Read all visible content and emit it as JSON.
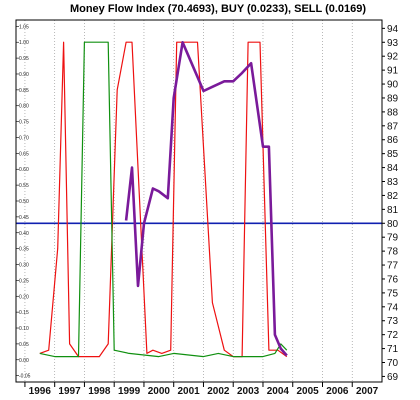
{
  "chart_data": {
    "type": "line",
    "title": "Money Flow Index (70.4693), BUY (0.0233), SELL (0.0169)",
    "x_tick_labels": [
      "1996",
      "1997",
      "1998",
      "1999",
      "2000",
      "2001",
      "2002",
      "2003",
      "2004",
      "2005",
      "2006",
      "2007"
    ],
    "x_range": [
      1995.7,
      2008.0
    ],
    "left_axis": {
      "ticks": [
        "1.05",
        "1.00",
        "0.95",
        "0.90",
        "0.85",
        "0.80",
        "0.75",
        "0.70",
        "0.65",
        "0.60",
        "0.55",
        "0.50",
        "0.45",
        "0.40",
        "0.35",
        "0.30",
        "0.25",
        "0.20",
        "0.15",
        "0.10",
        "0.05",
        "0.00",
        "-0.05"
      ],
      "ylim": [
        -0.07,
        1.07
      ]
    },
    "right_axis": {
      "ticks": [
        94,
        93,
        92,
        91,
        90,
        89,
        88,
        87,
        86,
        85,
        84,
        83,
        82,
        81,
        80,
        79,
        78,
        77,
        76,
        75,
        74,
        73,
        72,
        71,
        70,
        69
      ],
      "ylim": [
        68.6,
        94.6
      ]
    },
    "reference_line": {
      "axis": "right",
      "value": 80.0,
      "color": "#1020b0"
    },
    "series": [
      {
        "axis": "left",
        "color": "#ee1111",
        "x": [
          1996.5,
          1996.8,
          1997.1,
          1997.3,
          1997.5,
          1997.8,
          1998.5,
          1998.8,
          1999.1,
          1999.4,
          1999.6,
          2000.1,
          2000.3,
          2000.6,
          2000.9,
          2001.1,
          2001.4,
          2001.8,
          2002.3,
          2002.7,
          2003.0,
          2003.3,
          2003.5,
          2003.9,
          2004.2,
          2004.5,
          2004.8
        ],
        "y": [
          0.02,
          0.03,
          0.35,
          1.0,
          0.05,
          0.01,
          0.01,
          0.05,
          0.85,
          1.0,
          1.0,
          0.02,
          0.03,
          0.02,
          0.03,
          1.0,
          1.0,
          1.0,
          0.18,
          0.03,
          0.01,
          0.01,
          1.0,
          1.0,
          0.03,
          0.03,
          0.01
        ]
      },
      {
        "axis": "left",
        "color": "#109010",
        "x": [
          1996.5,
          1997.0,
          1997.8,
          1998.0,
          1998.3,
          1998.8,
          1999.0,
          1999.5,
          2000.5,
          2001.0,
          2002.0,
          2002.5,
          2003.0,
          2004.0,
          2004.4,
          2004.6,
          2004.8
        ],
        "y": [
          0.02,
          0.01,
          0.01,
          1.0,
          1.0,
          1.0,
          0.03,
          0.02,
          0.01,
          0.02,
          0.01,
          0.02,
          0.01,
          0.01,
          0.02,
          0.05,
          0.03
        ]
      },
      {
        "axis": "right",
        "color": "#7a1a9a",
        "x": [
          1999.4,
          1999.6,
          1999.8,
          2000.0,
          2000.3,
          2000.5,
          2000.8,
          2001.0,
          2001.3,
          2001.6,
          2002.0,
          2002.3,
          2002.7,
          2003.0,
          2003.3,
          2003.6,
          2004.0,
          2004.2,
          2004.4,
          2004.6,
          2004.8
        ],
        "y": [
          80.2,
          84.0,
          75.5,
          80.0,
          82.5,
          82.3,
          81.8,
          89.0,
          93.0,
          91.5,
          89.5,
          89.8,
          90.2,
          90.2,
          90.8,
          91.5,
          85.5,
          85.5,
          72.0,
          71.0,
          70.5
        ]
      }
    ],
    "grid": {
      "vertical": true,
      "style": "dotted"
    }
  }
}
